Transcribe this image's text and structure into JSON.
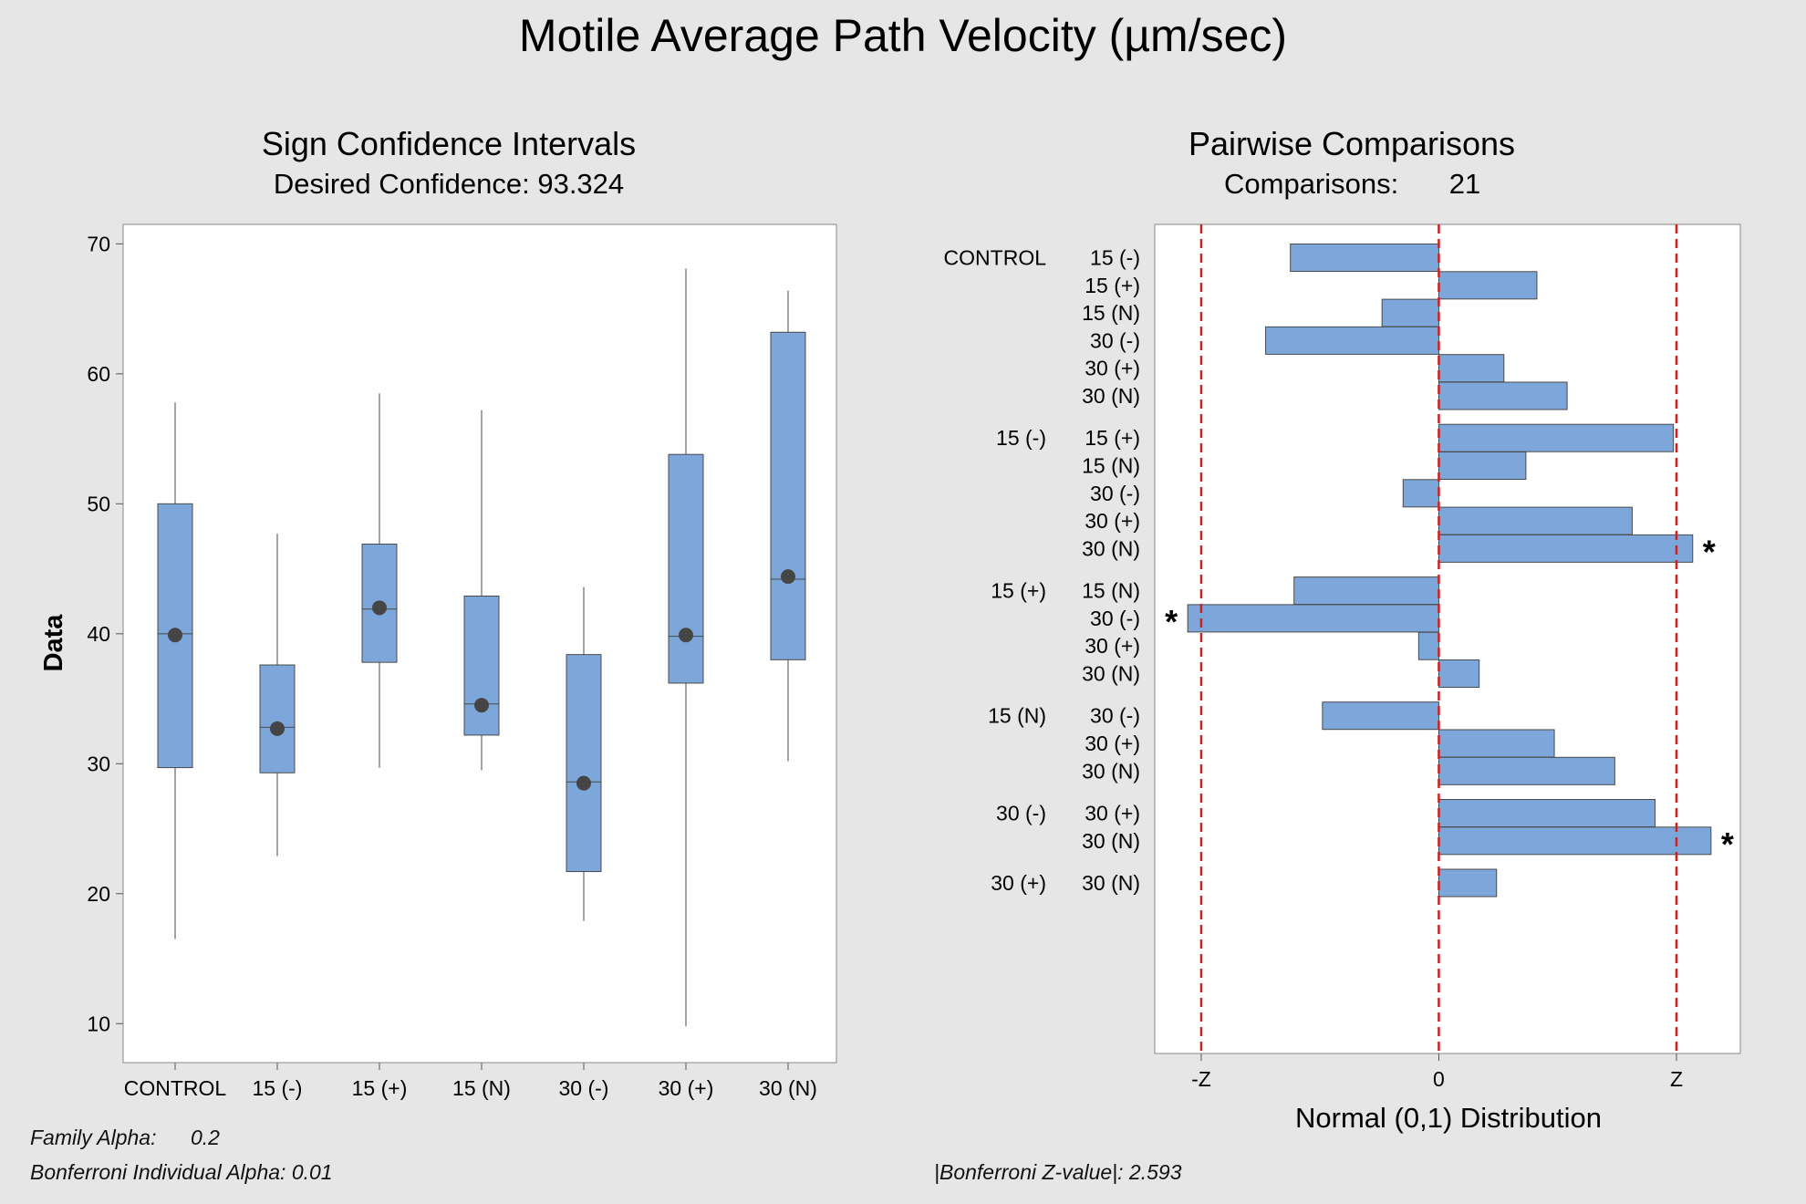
{
  "title": "Motile Average Path Velocity (µm/sec)",
  "colors": {
    "box_fill": "#7da7db",
    "box_stroke": "#4a4a4a",
    "ref_line": "#d11f1f",
    "median_dot": "#454545",
    "plot_bg": "#ffffff",
    "page_bg": "#e6e6e6"
  },
  "footnotes": {
    "family_alpha_label": "Family Alpha:",
    "family_alpha_value": "0.2",
    "individual_alpha": "Bonferroni Individual Alpha: 0.01",
    "z_value": "|Bonferroni Z-value|: 2.593"
  },
  "chart_data": [
    {
      "type": "box",
      "title": "Sign Confidence Intervals",
      "subtitle": "Desired Confidence: 93.324",
      "ylabel": "Data",
      "xlabel": "",
      "ylim": [
        7,
        71.5
      ],
      "yticks": [
        10,
        20,
        30,
        40,
        50,
        60,
        70
      ],
      "grid": false,
      "categories": [
        "CONTROL",
        "15 (-)",
        "15 (+)",
        "15 (N)",
        "30 (-)",
        "30 (+)",
        "30 (N)"
      ],
      "boxes": [
        {
          "whisker_low": 16.5,
          "q1": 29.7,
          "median": 40.0,
          "q3": 50.0,
          "whisker_high": 57.8,
          "ci_center": 39.9
        },
        {
          "whisker_low": 22.9,
          "q1": 29.3,
          "median": 32.8,
          "q3": 37.6,
          "whisker_high": 47.7,
          "ci_center": 32.7
        },
        {
          "whisker_low": 29.7,
          "q1": 37.8,
          "median": 41.9,
          "q3": 46.9,
          "whisker_high": 58.5,
          "ci_center": 42.0
        },
        {
          "whisker_low": 29.5,
          "q1": 32.2,
          "median": 34.6,
          "q3": 42.9,
          "whisker_high": 57.2,
          "ci_center": 34.5
        },
        {
          "whisker_low": 17.9,
          "q1": 21.7,
          "median": 28.6,
          "q3": 38.4,
          "whisker_high": 43.6,
          "ci_center": 28.5
        },
        {
          "whisker_low": 9.8,
          "q1": 36.2,
          "median": 39.8,
          "q3": 53.8,
          "whisker_high": 68.1,
          "ci_center": 39.9
        },
        {
          "whisker_low": 30.2,
          "q1": 38.0,
          "median": 44.2,
          "q3": 63.2,
          "whisker_high": 66.4,
          "ci_center": 44.4
        }
      ]
    },
    {
      "type": "bar",
      "orientation": "horizontal",
      "title": "Pairwise Comparisons",
      "subtitle_label": "Comparisons:",
      "subtitle_value": "21",
      "xlabel": "Normal (0,1) Distribution",
      "xticks": [
        {
          "label": "-Z",
          "value": -2.593
        },
        {
          "label": "0",
          "value": 0
        },
        {
          "label": "Z",
          "value": 2.593
        }
      ],
      "xlim": [
        -3.1,
        3.29
      ],
      "reference_lines": [
        -2.593,
        0,
        2.593
      ],
      "significance_marker": "*",
      "groups": [
        {
          "name": "CONTROL",
          "comparisons": [
            {
              "label": "15 (-)",
              "value": -1.62,
              "significant": false
            },
            {
              "label": "15 (+)",
              "value": 1.07,
              "significant": false
            },
            {
              "label": "15 (N)",
              "value": -0.62,
              "significant": false
            },
            {
              "label": "30 (-)",
              "value": -1.89,
              "significant": false
            },
            {
              "label": "30 (+)",
              "value": 0.71,
              "significant": false
            },
            {
              "label": "30 (N)",
              "value": 1.4,
              "significant": false
            }
          ]
        },
        {
          "name": "15 (-)",
          "comparisons": [
            {
              "label": "15 (+)",
              "value": 2.56,
              "significant": false
            },
            {
              "label": "15 (N)",
              "value": 0.95,
              "significant": false
            },
            {
              "label": "30 (-)",
              "value": -0.39,
              "significant": false
            },
            {
              "label": "30 (+)",
              "value": 2.11,
              "significant": false
            },
            {
              "label": "30 (N)",
              "value": 2.77,
              "significant": true
            }
          ]
        },
        {
          "name": "15 (+)",
          "comparisons": [
            {
              "label": "15 (N)",
              "value": -1.58,
              "significant": false
            },
            {
              "label": "30 (-)",
              "value": -2.74,
              "significant": true
            },
            {
              "label": "30 (+)",
              "value": -0.22,
              "significant": false
            },
            {
              "label": "30 (N)",
              "value": 0.44,
              "significant": false
            }
          ]
        },
        {
          "name": "15 (N)",
          "comparisons": [
            {
              "label": "30 (-)",
              "value": -1.27,
              "significant": false
            },
            {
              "label": "30 (+)",
              "value": 1.26,
              "significant": false
            },
            {
              "label": "30 (N)",
              "value": 1.92,
              "significant": false
            }
          ]
        },
        {
          "name": "30 (-)",
          "comparisons": [
            {
              "label": "30 (+)",
              "value": 2.36,
              "significant": false
            },
            {
              "label": "30 (N)",
              "value": 2.97,
              "significant": true
            }
          ]
        },
        {
          "name": "30 (+)",
          "comparisons": [
            {
              "label": "30 (N)",
              "value": 0.63,
              "significant": false
            }
          ]
        }
      ]
    }
  ]
}
